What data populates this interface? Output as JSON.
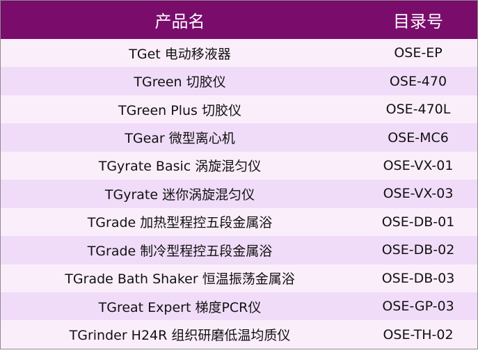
{
  "table": {
    "headers": [
      "产品名",
      "目录号"
    ],
    "rows": [
      {
        "name": "TGet 电动移液器",
        "catalog": "OSE-EP"
      },
      {
        "name": "TGreen 切胶仪",
        "catalog": "OSE-470"
      },
      {
        "name": "TGreen Plus 切胶仪",
        "catalog": "OSE-470L"
      },
      {
        "name": "TGear  微型离心机",
        "catalog": "OSE-MC6"
      },
      {
        "name": "TGyrate Basic 涡旋混匀仪",
        "catalog": "OSE-VX-01"
      },
      {
        "name": "TGyrate 迷你涡旋混匀仪",
        "catalog": "OSE-VX-03"
      },
      {
        "name": "TGrade 加热型程控五段金属浴",
        "catalog": "OSE-DB-01"
      },
      {
        "name": "TGrade 制冷型程控五段金属浴",
        "catalog": "OSE-DB-02"
      },
      {
        "name": "TGrade Bath Shaker 恒温振荡金属浴",
        "catalog": "OSE-DB-03"
      },
      {
        "name": "TGreat Expert 梯度PCR仪",
        "catalog": "OSE-GP-03"
      },
      {
        "name": "TGrinder H24R 组织研磨低温均质仪",
        "catalog": "OSE-TH-02"
      }
    ],
    "colors": {
      "header": "#7a0c6c",
      "row_light": "#fbeefb",
      "row_dark": "#f0dcf8"
    }
  }
}
